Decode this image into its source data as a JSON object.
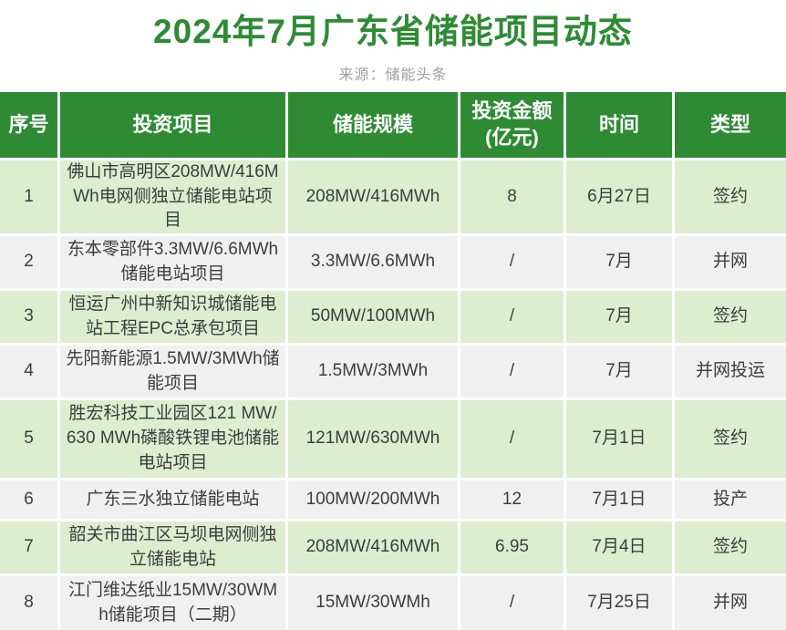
{
  "title": "2024年7月广东省储能项目动态",
  "source": "来源：储能头条",
  "colors": {
    "brand_green": "#2e8b34",
    "row_green": "#dcedd0",
    "row_gray": "#f0f0f0",
    "header_text": "#ffffff",
    "body_text": "#3d3d3d",
    "source_text": "#9e9e9e"
  },
  "table": {
    "headers": [
      {
        "line1": "序号"
      },
      {
        "line1": "投资项目"
      },
      {
        "line1": "储能规模"
      },
      {
        "line1": "投资金额",
        "line2": "(亿元)"
      },
      {
        "line1": "时间"
      },
      {
        "line1": "类型"
      }
    ],
    "rows": [
      {
        "no": "1",
        "project": "佛山市高明区208MW/416MWh电网侧独立储能电站项目",
        "scale": "208MW/416MWh",
        "amount": "8",
        "date": "6月27日",
        "type": "签约"
      },
      {
        "no": "2",
        "project": "东本零部件3.3MW/6.6MWh储能电站项目",
        "scale": "3.3MW/6.6MWh",
        "amount": "/",
        "date": "7月",
        "type": "并网"
      },
      {
        "no": "3",
        "project": "恒运广州中新知识城储能电站工程EPC总承包项目",
        "scale": "50MW/100MWh",
        "amount": "/",
        "date": "7月",
        "type": "签约"
      },
      {
        "no": "4",
        "project": "先阳新能源1.5MW/3MWh储能项目",
        "scale": "1.5MW/3MWh",
        "amount": "/",
        "date": "7月",
        "type": "并网投运"
      },
      {
        "no": "5",
        "project": "胜宏科技工业园区121 MW/630 MWh磷酸铁锂电池储能电站项目",
        "scale": "121MW/630MWh",
        "amount": "/",
        "date": "7月1日",
        "type": "签约"
      },
      {
        "no": "6",
        "project": "广东三水独立储能电站",
        "scale": "100MW/200MWh",
        "amount": "12",
        "date": "7月1日",
        "type": "投产"
      },
      {
        "no": "7",
        "project": "韶关市曲江区马坝电网侧独立储能电站",
        "scale": "208MW/416MWh",
        "amount": "6.95",
        "date": "7月4日",
        "type": "签约"
      },
      {
        "no": "8",
        "project": "江门维达纸业15MW/30WMh储能项目（二期）",
        "scale": "15MW/30WMh",
        "amount": "/",
        "date": "7月25日",
        "type": "并网"
      }
    ]
  }
}
